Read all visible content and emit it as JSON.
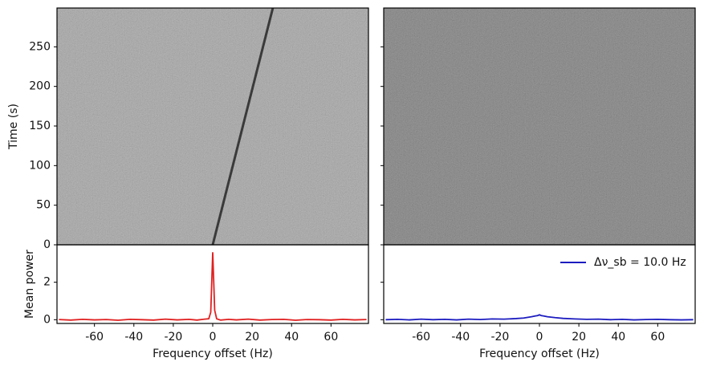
{
  "chart_data": [
    {
      "type": "heatmap",
      "ylabel": "Time (s)",
      "xlim": [
        -79,
        79
      ],
      "ylim": [
        0,
        299
      ],
      "yticks": [
        0,
        50,
        100,
        150,
        200,
        250
      ],
      "background": "#a2a2a2",
      "track": {
        "x": [
          0,
          30.5
        ],
        "y": [
          0,
          299
        ],
        "color": "#3a3a3a"
      }
    },
    {
      "type": "heatmap",
      "xlim": [
        -79,
        79
      ],
      "ylim": [
        0,
        299
      ],
      "yticks": [
        0,
        50,
        100,
        150,
        200,
        250
      ],
      "background": "#747474"
    },
    {
      "type": "line",
      "xlabel": "Frequency offset (Hz)",
      "ylabel": "Mean power",
      "xlim": [
        -79,
        79
      ],
      "ylim": [
        -0.2,
        4
      ],
      "xticks": [
        -60,
        -40,
        -20,
        0,
        20,
        40,
        60
      ],
      "yticks": [
        0,
        2
      ],
      "series": [
        {
          "color": "#e02020",
          "x": [
            -78,
            -72,
            -66,
            -60,
            -54,
            -48,
            -42,
            -36,
            -30,
            -24,
            -18,
            -12,
            -8,
            -4,
            -2,
            -1,
            0,
            1,
            2,
            4,
            8,
            12,
            18,
            24,
            30,
            36,
            42,
            48,
            54,
            60,
            66,
            72,
            78
          ],
          "values": [
            0.01,
            -0.02,
            0.02,
            -0.01,
            0.01,
            -0.03,
            0.02,
            0.0,
            -0.02,
            0.03,
            -0.01,
            0.02,
            -0.02,
            0.03,
            0.05,
            0.4,
            3.6,
            0.5,
            0.05,
            -0.02,
            0.02,
            -0.01,
            0.03,
            -0.02,
            0.01,
            0.02,
            -0.03,
            0.01,
            0.0,
            -0.02,
            0.02,
            -0.01,
            0.01
          ]
        }
      ]
    },
    {
      "type": "line",
      "xlabel": "Frequency offset (Hz)",
      "xlim": [
        -79,
        79
      ],
      "ylim": [
        -0.2,
        4
      ],
      "xticks": [
        -60,
        -40,
        -20,
        0,
        20,
        40,
        60
      ],
      "yticks": [
        0,
        2
      ],
      "legend": "upper right",
      "series": [
        {
          "name": "Δν_sb = 10.0 Hz",
          "color": "#1c1cc0",
          "x": [
            -78,
            -72,
            -66,
            -60,
            -54,
            -48,
            -42,
            -36,
            -30,
            -24,
            -18,
            -12,
            -8,
            -4,
            -2,
            -1,
            0,
            1,
            2,
            4,
            8,
            12,
            18,
            24,
            30,
            36,
            42,
            48,
            54,
            60,
            66,
            72,
            78
          ],
          "values": [
            0.0,
            0.02,
            -0.01,
            0.03,
            0.0,
            0.02,
            -0.01,
            0.03,
            0.01,
            0.04,
            0.03,
            0.06,
            0.09,
            0.16,
            0.2,
            0.22,
            0.26,
            0.22,
            0.2,
            0.16,
            0.11,
            0.07,
            0.04,
            0.02,
            0.03,
            0.0,
            0.02,
            -0.01,
            0.01,
            0.02,
            0.0,
            -0.01,
            0.0
          ]
        }
      ]
    }
  ]
}
